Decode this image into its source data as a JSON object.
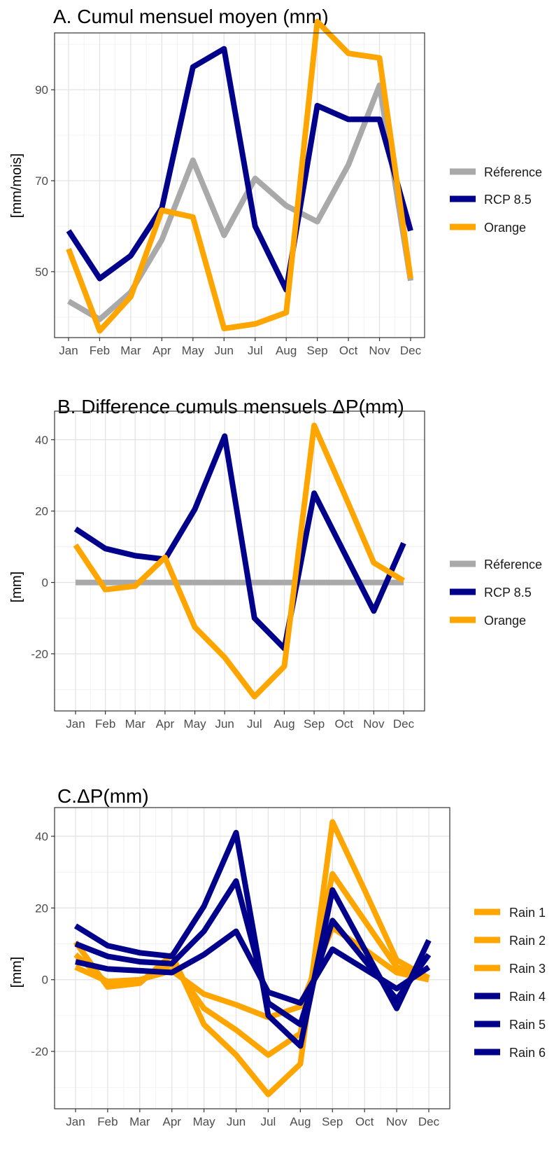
{
  "chart_data": [
    {
      "type": "line",
      "title": "A. Cumul mensuel moyen (mm)",
      "xlabel": "",
      "ylabel": "[mm/mois]",
      "categories": [
        "Jan",
        "Feb",
        "Mar",
        "Apr",
        "May",
        "Jun",
        "Jul",
        "Aug",
        "Sep",
        "Oct",
        "Nov",
        "Dec"
      ],
      "ylim": [
        35.5,
        102.5
      ],
      "yticks": [
        50,
        70,
        90
      ],
      "grid": true,
      "legend_position": "right",
      "series": [
        {
          "name": "Réference",
          "color": "#a9a9a9",
          "values": [
            43.5,
            39.5,
            45.5,
            57,
            74.5,
            58,
            70.5,
            64.5,
            61,
            73.5,
            91,
            48
          ]
        },
        {
          "name": "RCP 8.5",
          "color": "#00008b",
          "values": [
            59,
            48.5,
            53.5,
            64,
            95,
            99,
            60,
            46,
            86.5,
            83.5,
            83.5,
            59
          ]
        },
        {
          "name": "Orange",
          "color": "#ffa500",
          "values": [
            55,
            37,
            44.5,
            63.5,
            62,
            37.5,
            38.5,
            41,
            105,
            98,
            97,
            48.5
          ]
        }
      ]
    },
    {
      "type": "line",
      "title": "B. Difference cumuls mensuels ΔP(mm)",
      "xlabel": "",
      "ylabel": "[mm]",
      "categories": [
        "Jan",
        "Feb",
        "Mar",
        "Apr",
        "May",
        "Jun",
        "Jul",
        "Aug",
        "Sep",
        "Oct",
        "Nov",
        "Dec"
      ],
      "ylim": [
        -36,
        48
      ],
      "yticks": [
        -20,
        0,
        20,
        40
      ],
      "grid": true,
      "legend_position": "right",
      "series": [
        {
          "name": "Réference",
          "color": "#a9a9a9",
          "values": [
            0,
            0,
            0,
            0,
            0,
            0,
            0,
            0,
            0,
            0,
            0,
            0
          ]
        },
        {
          "name": "RCP 8.5",
          "color": "#00008b",
          "values": [
            15,
            9.5,
            7.5,
            6.5,
            20.5,
            41,
            -10,
            -18.5,
            25,
            8.5,
            -8,
            11
          ]
        },
        {
          "name": "Orange",
          "color": "#ffa500",
          "values": [
            10.5,
            -2,
            -1,
            7,
            -12.5,
            -21,
            -32,
            -23.5,
            44,
            25,
            5.5,
            0.5
          ]
        }
      ]
    },
    {
      "type": "line",
      "title": "C.ΔP(mm)",
      "xlabel": "",
      "ylabel": "[mm]",
      "categories": [
        "Jan",
        "Feb",
        "Mar",
        "Apr",
        "May",
        "Jun",
        "Jul",
        "Aug",
        "Sep",
        "Oct",
        "Nov",
        "Dec"
      ],
      "ylim": [
        -36,
        48
      ],
      "yticks": [
        -20,
        0,
        20,
        40
      ],
      "grid": true,
      "legend_position": "right",
      "series": [
        {
          "name": "Rain 1",
          "color": "#ffa500",
          "values": [
            10.5,
            -2,
            -1,
            7,
            -12.5,
            -21,
            -32,
            -23.5,
            44,
            25,
            5.5,
            0.5
          ]
        },
        {
          "name": "Rain 2",
          "color": "#ffa500",
          "values": [
            7,
            -1,
            -0.5,
            4.5,
            -8,
            -14,
            -21,
            -15,
            29.5,
            16.5,
            3.5,
            0.5
          ]
        },
        {
          "name": "Rain 3",
          "color": "#ffa500",
          "values": [
            3.5,
            -0.5,
            0,
            2.5,
            -4,
            -7,
            -10.5,
            -7.5,
            14.5,
            8.5,
            2,
            0
          ]
        },
        {
          "name": "Rain 4",
          "color": "#00008b",
          "values": [
            15,
            9.5,
            7.5,
            6.5,
            20.5,
            41,
            -10,
            -18.5,
            25,
            8.5,
            -8,
            11
          ]
        },
        {
          "name": "Rain 5",
          "color": "#00008b",
          "values": [
            10,
            6.5,
            5,
            4.5,
            13.5,
            27.5,
            -6.5,
            -12.5,
            16.5,
            5.5,
            -5.5,
            7
          ]
        },
        {
          "name": "Rain 6",
          "color": "#00008b",
          "values": [
            5,
            3,
            2.5,
            2,
            7,
            13.5,
            -3.5,
            -6.5,
            8.5,
            3,
            -2.5,
            3.5
          ]
        }
      ]
    }
  ]
}
